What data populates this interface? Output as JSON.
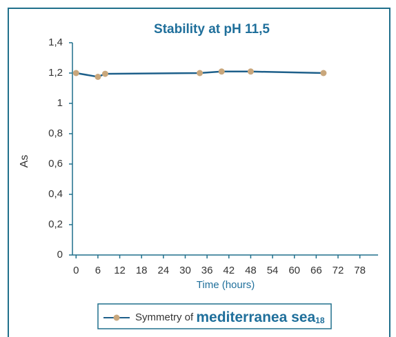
{
  "chart_data": {
    "type": "line",
    "title": "Stability at pH 11,5",
    "x_label": "Time (hours)",
    "y_label": "As",
    "x": [
      0,
      6,
      8,
      34,
      40,
      48,
      68
    ],
    "series": [
      {
        "name": "Symmetry of",
        "name_emphasis": "mediterranea sea",
        "name_subscript": "18",
        "color": "#1d5f8a",
        "marker_color": "#c9a77c",
        "values": [
          1.2,
          1.175,
          1.195,
          1.2,
          1.21,
          1.21,
          1.2
        ]
      }
    ],
    "xlim": [
      -1,
      83
    ],
    "xticks": [
      0,
      6,
      12,
      18,
      24,
      30,
      36,
      42,
      48,
      54,
      60,
      66,
      72,
      78
    ],
    "ylim": [
      0,
      1.4
    ],
    "yticks": [
      0,
      {
        "value": 0.2,
        "label": "0,2"
      },
      {
        "value": 0.4,
        "label": "0,4"
      },
      {
        "value": 0.6,
        "label": "0,6"
      },
      {
        "value": 0.8,
        "label": "0,8"
      },
      1,
      {
        "value": 1.2,
        "label": "1,2"
      },
      {
        "value": 1.4,
        "label": "1,4"
      }
    ],
    "grid": false
  }
}
